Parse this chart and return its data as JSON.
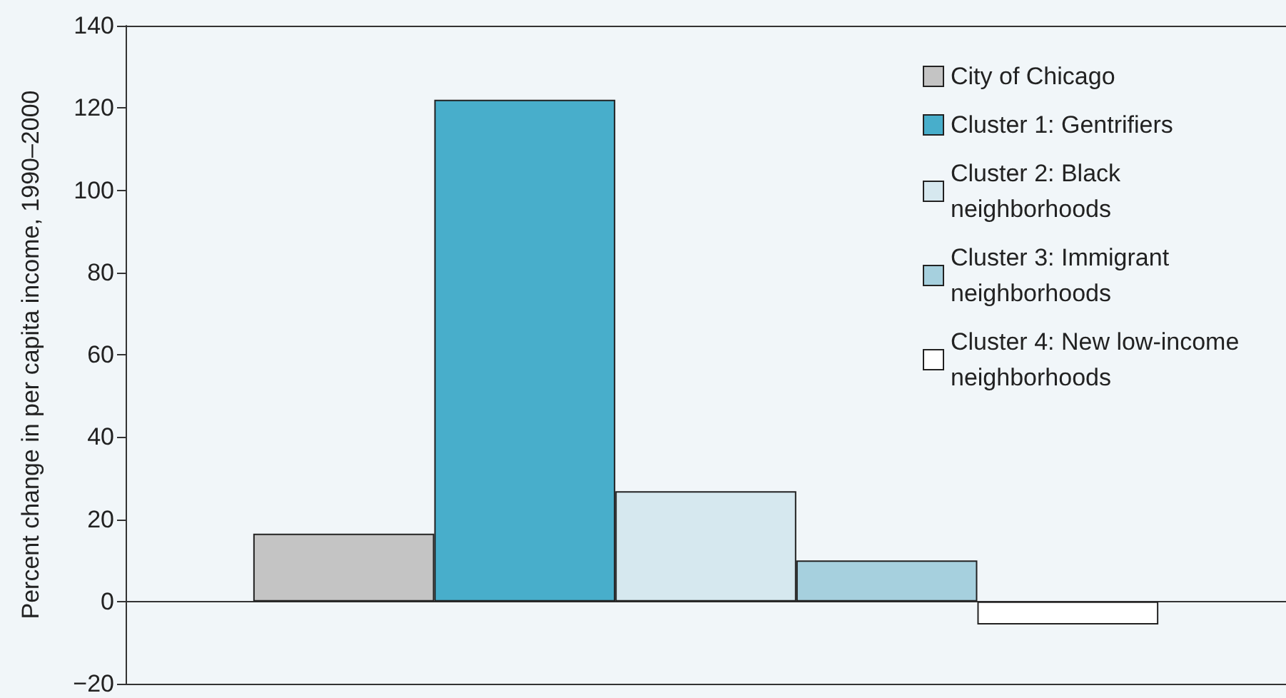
{
  "chart_data": {
    "type": "bar",
    "ylabel": "Percent change in per capita income, 1990–2000",
    "categories": [
      null
    ],
    "series": [
      {
        "name": "City of Chicago",
        "color": "#c4c4c4",
        "values": [
          16.5
        ]
      },
      {
        "name": "Cluster 1: Gentrifiers",
        "color": "#48aecb",
        "values": [
          122
        ]
      },
      {
        "name": "Cluster 2: Black neighborhoods",
        "color": "#d6e8ef",
        "values": [
          26.8
        ]
      },
      {
        "name": "Cluster 3: Immigrant neighborhoods",
        "color": "#a6d0de",
        "values": [
          10
        ]
      },
      {
        "name": "Cluster 4: New low-income neighborhoods",
        "color": "#ffffff",
        "values": [
          -5.6
        ]
      }
    ],
    "ylim": [
      -20,
      140
    ],
    "yticks": [
      -20,
      0,
      20,
      40,
      60,
      80,
      100,
      120,
      140
    ],
    "tick_labels": "y",
    "legend": "top right"
  }
}
